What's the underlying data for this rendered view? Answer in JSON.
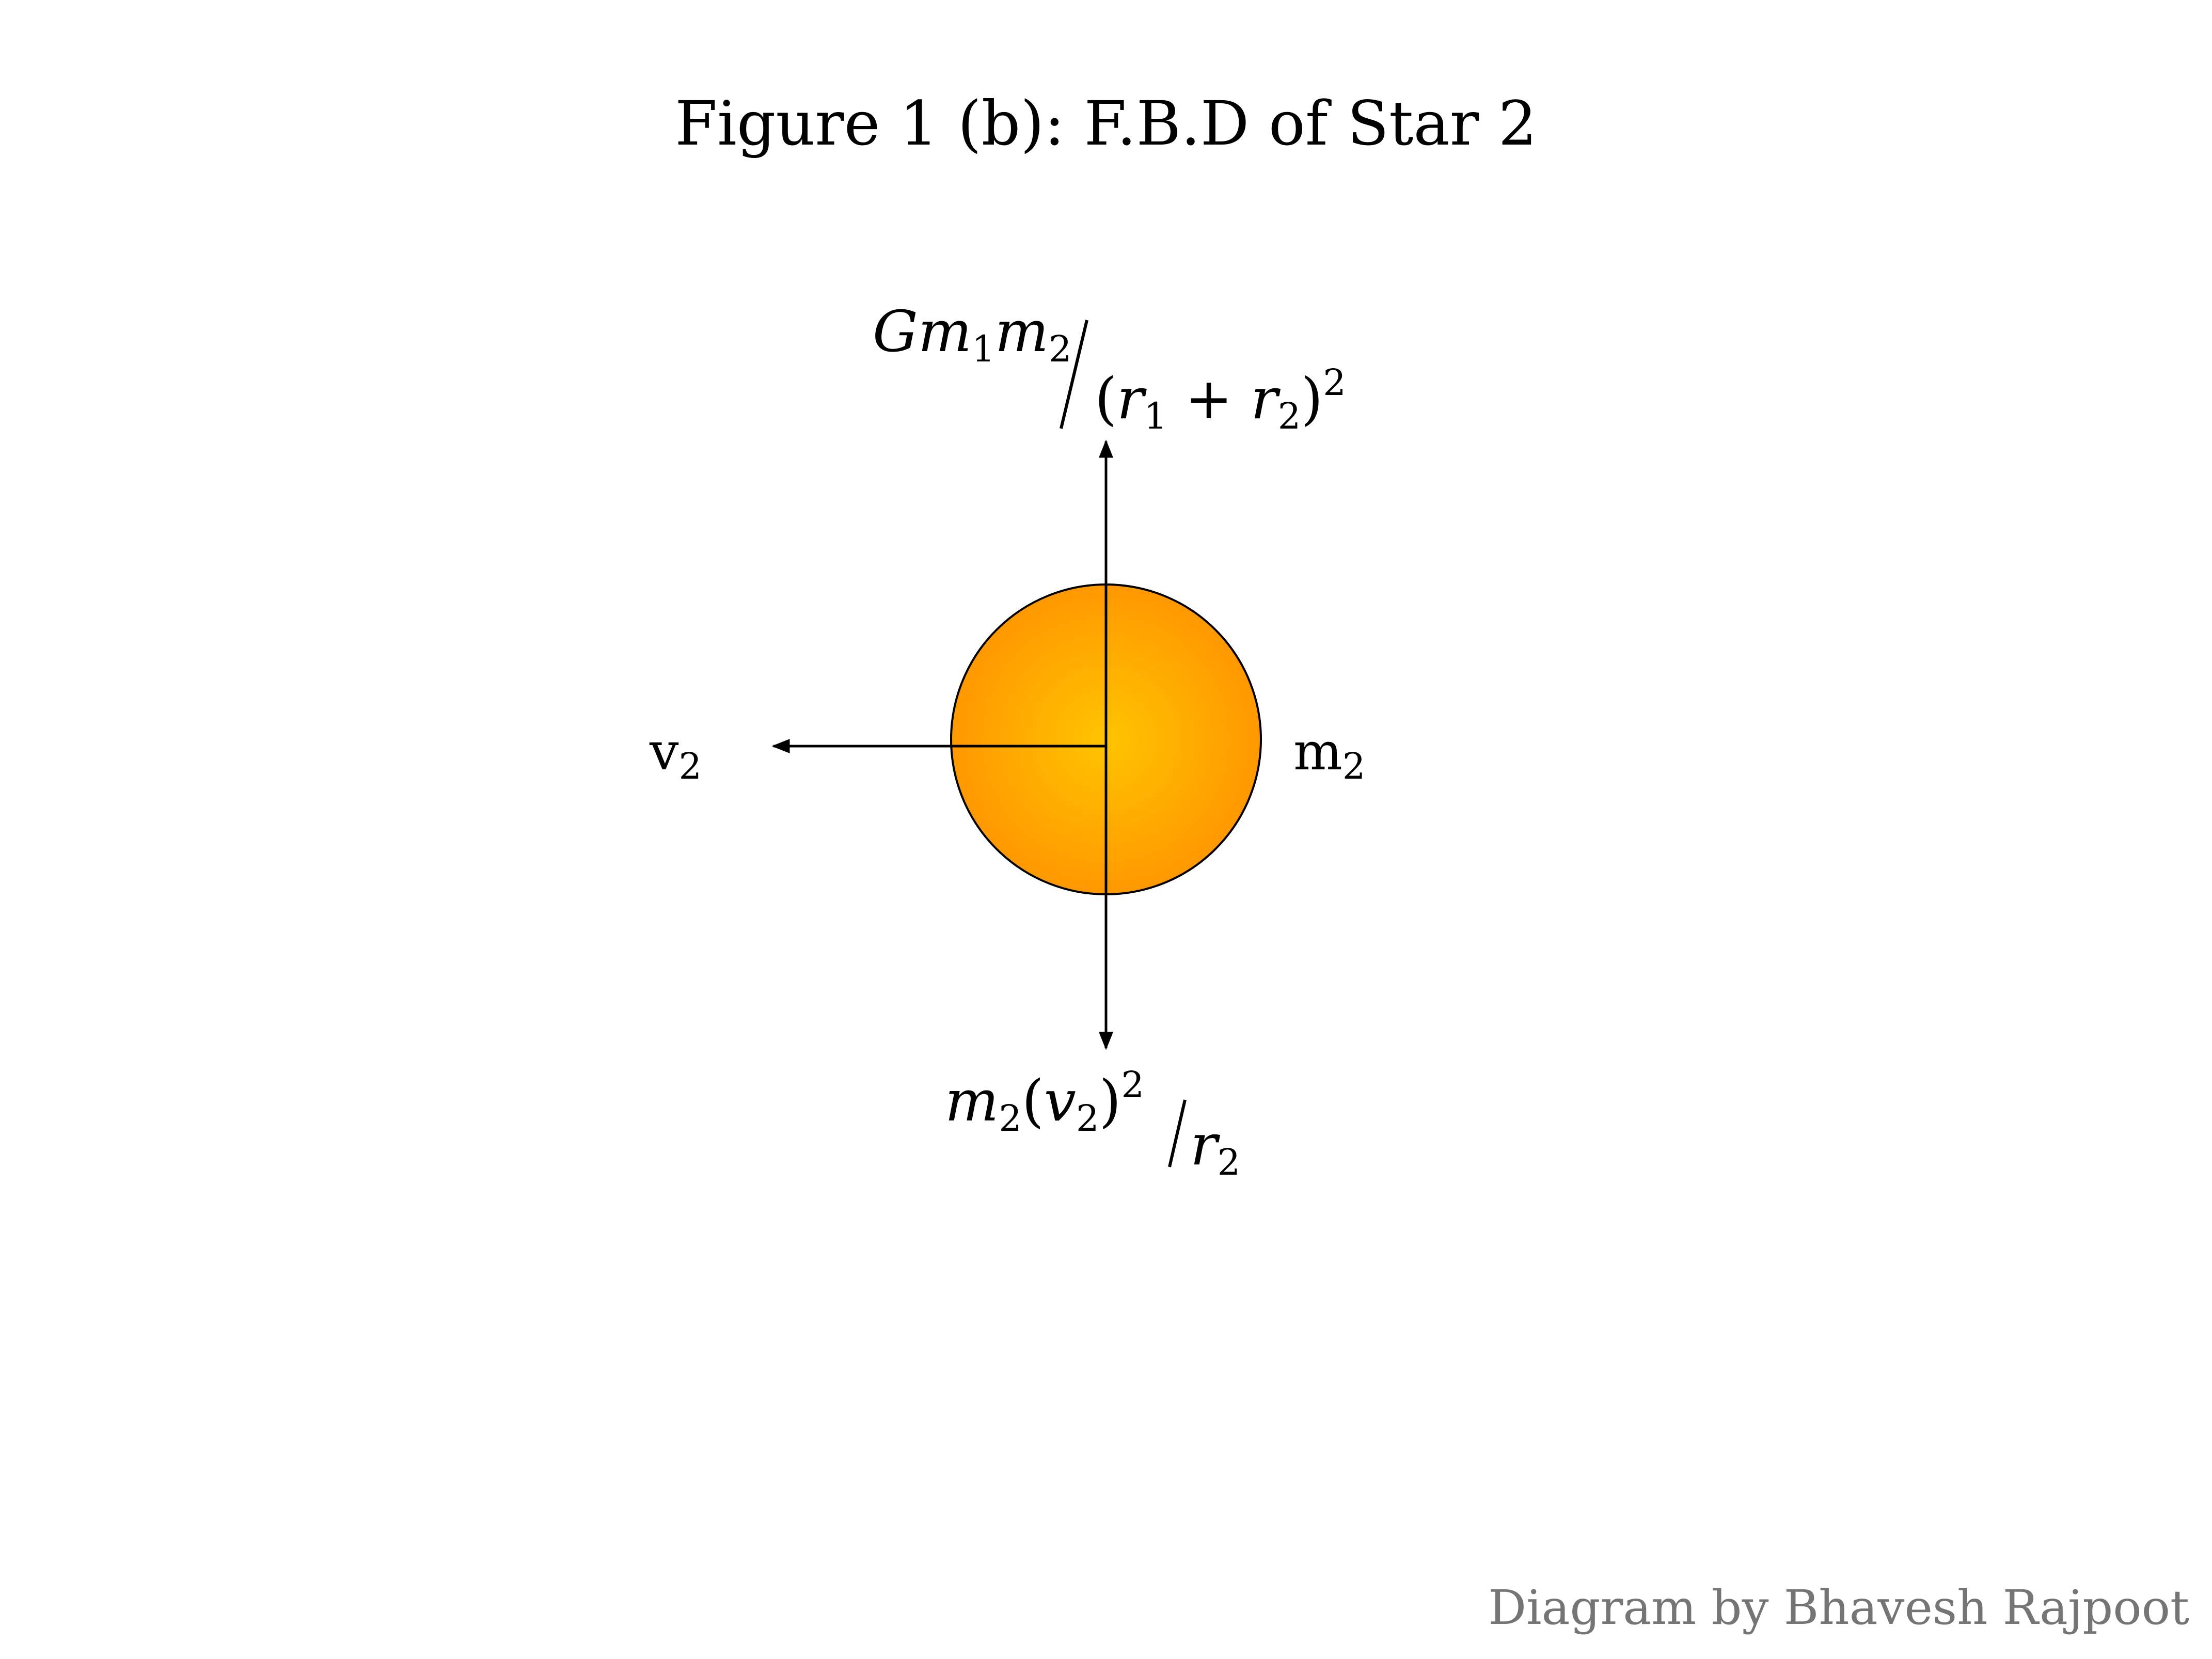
{
  "figure": {
    "title": "Figure 1 (b): F.B.D of Star 2",
    "credit": "Diagram by Bhavesh Rajpoot",
    "credit_color": "#757575"
  },
  "star": {
    "mass_label": "m",
    "mass_subscript": "2",
    "gradient_center_color": "#FFC400",
    "gradient_edge_color": "#FF9800",
    "outline_color": "#000000"
  },
  "velocity": {
    "label": "v",
    "subscript": "2",
    "direction": "left"
  },
  "gravitational_force": {
    "direction": "up",
    "numerator": {
      "G": "G",
      "m1": "m",
      "m1_sub": "1",
      "m2": "m",
      "m2_sub": "2"
    },
    "denominator": {
      "open": "(",
      "r1": "r",
      "r1_sub": "1",
      "plus": " + ",
      "r2": "r",
      "r2_sub": "2",
      "close": ")",
      "power": "2"
    }
  },
  "centripetal_force": {
    "direction": "down",
    "numerator": {
      "m": "m",
      "m_sub": "2",
      "open": "(",
      "v": "v",
      "v_sub": "2",
      "close": ")",
      "power": "2"
    },
    "denominator": {
      "r": "r",
      "r_sub": "2"
    }
  }
}
